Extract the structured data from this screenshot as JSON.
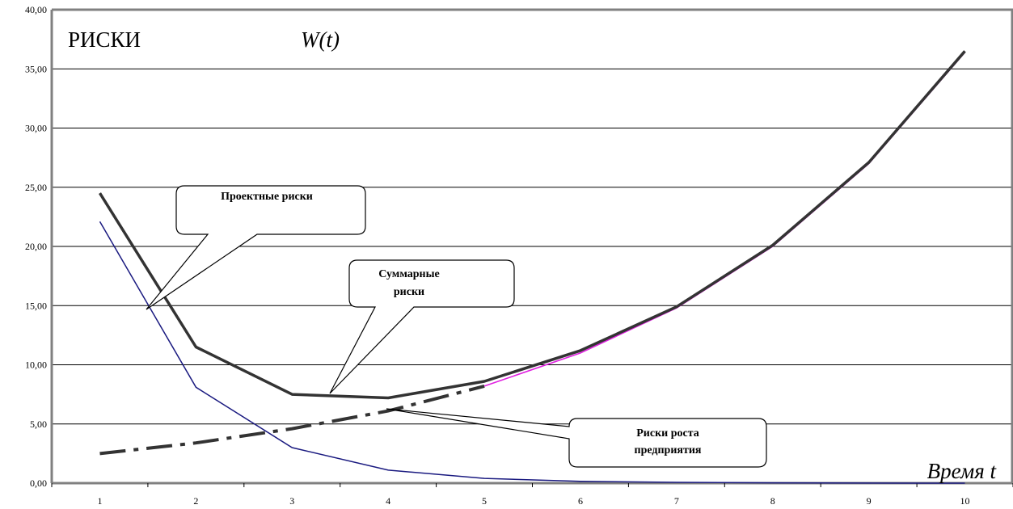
{
  "chart_data": {
    "type": "line",
    "title": "РИСКИ",
    "subtitle": "W(t)",
    "xlabel": "Время t",
    "ylabel": "",
    "x": [
      1,
      2,
      3,
      4,
      5,
      6,
      7,
      8,
      9,
      10
    ],
    "ylim": [
      0,
      40
    ],
    "y_ticks": [
      "0,00",
      "5,00",
      "10,00",
      "15,00",
      "20,00",
      "25,00",
      "30,00",
      "35,00",
      "40,00"
    ],
    "x_ticks": [
      "1",
      "2",
      "3",
      "4",
      "5",
      "6",
      "7",
      "8",
      "9",
      "10"
    ],
    "grid": true,
    "series": [
      {
        "key": "project",
        "values": [
          22.1,
          8.1,
          3.0,
          1.1,
          0.4,
          0.15,
          0.07,
          0.03,
          0.01,
          0.0
        ],
        "color": "#1a1a80"
      },
      {
        "key": "total",
        "values": [
          24.5,
          11.5,
          7.5,
          7.2,
          8.6,
          11.2,
          14.9,
          20.1,
          27.1,
          36.5
        ],
        "color": "#333333"
      },
      {
        "key": "growth",
        "values": [
          2.5,
          3.4,
          4.6,
          6.1,
          8.2,
          11.0,
          14.8,
          20.0,
          27.0,
          36.4
        ],
        "color": "#333333",
        "color_alt": "#e020e0"
      }
    ],
    "annotations": [
      {
        "key": "project",
        "lines": [
          "Проектные риски"
        ]
      },
      {
        "key": "total",
        "lines": [
          "Суммарные",
          "риски"
        ]
      },
      {
        "key": "growth",
        "lines": [
          "Риски роста",
          "предприятия"
        ]
      }
    ]
  }
}
